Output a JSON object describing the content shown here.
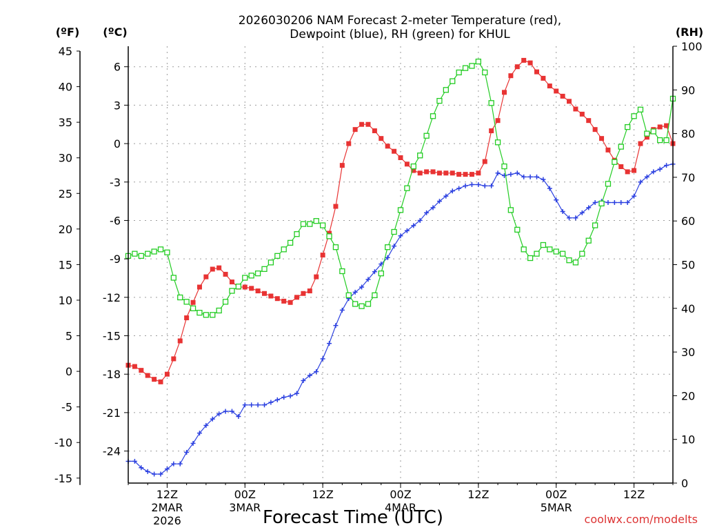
{
  "chart_data": {
    "type": "line",
    "title_line1": "2026030206 NAM Forecast 2-meter Temperature (red),",
    "title_line2": "Dewpoint (blue), RH (green) for KHUL",
    "xlabel": "Forecast Time (UTC)",
    "credit": "coolwx.com/modelts",
    "units": {
      "fahrenheit": "(ºF)",
      "celsius": "(ºC)",
      "rh": "(RH)"
    },
    "x_range_hours": [
      0,
      84
    ],
    "celsius_range": [
      -26.5,
      7.6
    ],
    "rh_range": [
      0,
      100
    ],
    "y_left_f_ticks": [
      "-15",
      "-10",
      "-5",
      "0",
      "5",
      "10",
      "15",
      "20",
      "25",
      "30",
      "35",
      "40",
      "45"
    ],
    "y_left_c_ticks": [
      "-24",
      "-21",
      "-18",
      "-15",
      "-12",
      "-9",
      "-6",
      "-3",
      "0",
      "3",
      "6"
    ],
    "y_right_ticks": [
      "0",
      "10",
      "20",
      "30",
      "40",
      "50",
      "60",
      "70",
      "80",
      "90",
      "100"
    ],
    "x_ticks": [
      {
        "hour": 6,
        "label": "12Z",
        "date": "2MAR",
        "year": "2026"
      },
      {
        "hour": 18,
        "label": "00Z",
        "date": "3MAR",
        "year": ""
      },
      {
        "hour": 30,
        "label": "12Z",
        "date": "",
        "year": ""
      },
      {
        "hour": 42,
        "label": "00Z",
        "date": "4MAR",
        "year": ""
      },
      {
        "hour": 54,
        "label": "12Z",
        "date": "",
        "year": ""
      },
      {
        "hour": 66,
        "label": "00Z",
        "date": "5MAR",
        "year": ""
      },
      {
        "hour": 78,
        "label": "12Z",
        "date": "",
        "year": ""
      }
    ],
    "series": [
      {
        "name": "Temperature",
        "color": "#e83333",
        "unit": "C",
        "values": [
          [
            0,
            -17.3
          ],
          [
            1,
            -17.4
          ],
          [
            2,
            -17.7
          ],
          [
            3,
            -18.1
          ],
          [
            4,
            -18.4
          ],
          [
            5,
            -18.6
          ],
          [
            6,
            -18.0
          ],
          [
            7,
            -16.8
          ],
          [
            8,
            -15.4
          ],
          [
            9,
            -13.6
          ],
          [
            10,
            -12.4
          ],
          [
            11,
            -11.2
          ],
          [
            12,
            -10.4
          ],
          [
            13,
            -9.8
          ],
          [
            14,
            -9.7
          ],
          [
            15,
            -10.2
          ],
          [
            16,
            -10.8
          ],
          [
            17,
            -11.2
          ],
          [
            18,
            -11.2
          ],
          [
            19,
            -11.3
          ],
          [
            20,
            -11.5
          ],
          [
            21,
            -11.7
          ],
          [
            22,
            -11.9
          ],
          [
            23,
            -12.1
          ],
          [
            24,
            -12.3
          ],
          [
            25,
            -12.4
          ],
          [
            26,
            -12.0
          ],
          [
            27,
            -11.7
          ],
          [
            28,
            -11.5
          ],
          [
            29,
            -10.4
          ],
          [
            30,
            -8.7
          ],
          [
            31,
            -7.0
          ],
          [
            32,
            -4.9
          ],
          [
            33,
            -1.7
          ],
          [
            34,
            0.0
          ],
          [
            35,
            1.1
          ],
          [
            36,
            1.5
          ],
          [
            37,
            1.5
          ],
          [
            38,
            1.0
          ],
          [
            39,
            0.4
          ],
          [
            40,
            -0.2
          ],
          [
            41,
            -0.6
          ],
          [
            42,
            -1.1
          ],
          [
            43,
            -1.6
          ],
          [
            44,
            -2.1
          ],
          [
            45,
            -2.3
          ],
          [
            46,
            -2.2
          ],
          [
            47,
            -2.2
          ],
          [
            48,
            -2.3
          ],
          [
            49,
            -2.3
          ],
          [
            50,
            -2.3
          ],
          [
            51,
            -2.4
          ],
          [
            52,
            -2.4
          ],
          [
            53,
            -2.4
          ],
          [
            54,
            -2.3
          ],
          [
            55,
            -1.4
          ],
          [
            56,
            1.0
          ],
          [
            57,
            1.8
          ],
          [
            58,
            4.0
          ],
          [
            59,
            5.3
          ],
          [
            60,
            6.0
          ],
          [
            61,
            6.5
          ],
          [
            62,
            6.3
          ],
          [
            63,
            5.6
          ],
          [
            64,
            5.1
          ],
          [
            65,
            4.5
          ],
          [
            66,
            4.1
          ],
          [
            67,
            3.7
          ],
          [
            68,
            3.3
          ],
          [
            69,
            2.7
          ],
          [
            70,
            2.3
          ],
          [
            71,
            1.8
          ],
          [
            72,
            1.1
          ],
          [
            73,
            0.4
          ],
          [
            74,
            -0.5
          ],
          [
            75,
            -1.3
          ],
          [
            76,
            -1.8
          ],
          [
            77,
            -2.2
          ],
          [
            78,
            -2.1
          ],
          [
            79,
            0.0
          ],
          [
            80,
            0.5
          ],
          [
            81,
            1.1
          ],
          [
            82,
            1.3
          ],
          [
            83,
            1.4
          ],
          [
            84,
            0.0
          ]
        ]
      },
      {
        "name": "Dewpoint",
        "color": "#2a3fe0",
        "unit": "C",
        "values": [
          [
            0,
            -24.8
          ],
          [
            1,
            -24.8
          ],
          [
            2,
            -25.3
          ],
          [
            3,
            -25.6
          ],
          [
            4,
            -25.8
          ],
          [
            5,
            -25.8
          ],
          [
            6,
            -25.4
          ],
          [
            7,
            -25.0
          ],
          [
            8,
            -25.0
          ],
          [
            9,
            -24.1
          ],
          [
            10,
            -23.4
          ],
          [
            11,
            -22.6
          ],
          [
            12,
            -22.0
          ],
          [
            13,
            -21.5
          ],
          [
            14,
            -21.1
          ],
          [
            15,
            -20.9
          ],
          [
            16,
            -20.9
          ],
          [
            17,
            -21.3
          ],
          [
            18,
            -20.4
          ],
          [
            19,
            -20.4
          ],
          [
            20,
            -20.4
          ],
          [
            21,
            -20.4
          ],
          [
            22,
            -20.2
          ],
          [
            23,
            -20.0
          ],
          [
            24,
            -19.8
          ],
          [
            25,
            -19.7
          ],
          [
            26,
            -19.5
          ],
          [
            27,
            -18.5
          ],
          [
            28,
            -18.1
          ],
          [
            29,
            -17.8
          ],
          [
            30,
            -16.8
          ],
          [
            31,
            -15.6
          ],
          [
            32,
            -14.2
          ],
          [
            33,
            -13.0
          ],
          [
            34,
            -12.1
          ],
          [
            35,
            -11.6
          ],
          [
            36,
            -11.2
          ],
          [
            37,
            -10.6
          ],
          [
            38,
            -10.0
          ],
          [
            39,
            -9.4
          ],
          [
            40,
            -8.9
          ],
          [
            41,
            -8.0
          ],
          [
            42,
            -7.2
          ],
          [
            43,
            -6.8
          ],
          [
            44,
            -6.4
          ],
          [
            45,
            -6.0
          ],
          [
            46,
            -5.4
          ],
          [
            47,
            -5.0
          ],
          [
            48,
            -4.5
          ],
          [
            49,
            -4.1
          ],
          [
            50,
            -3.7
          ],
          [
            51,
            -3.5
          ],
          [
            52,
            -3.3
          ],
          [
            53,
            -3.2
          ],
          [
            54,
            -3.2
          ],
          [
            55,
            -3.3
          ],
          [
            56,
            -3.3
          ],
          [
            57,
            -2.3
          ],
          [
            58,
            -2.5
          ],
          [
            59,
            -2.4
          ],
          [
            60,
            -2.3
          ],
          [
            61,
            -2.6
          ],
          [
            62,
            -2.6
          ],
          [
            63,
            -2.6
          ],
          [
            64,
            -2.8
          ],
          [
            65,
            -3.5
          ],
          [
            66,
            -4.4
          ],
          [
            67,
            -5.3
          ],
          [
            68,
            -5.8
          ],
          [
            69,
            -5.8
          ],
          [
            70,
            -5.4
          ],
          [
            71,
            -5.0
          ],
          [
            72,
            -4.6
          ],
          [
            73,
            -4.5
          ],
          [
            74,
            -4.6
          ],
          [
            75,
            -4.6
          ],
          [
            76,
            -4.6
          ],
          [
            77,
            -4.6
          ],
          [
            78,
            -4.1
          ],
          [
            79,
            -3.0
          ],
          [
            80,
            -2.6
          ],
          [
            81,
            -2.2
          ],
          [
            82,
            -2.0
          ],
          [
            83,
            -1.7
          ],
          [
            84,
            -1.6
          ]
        ]
      },
      {
        "name": "RH",
        "color": "#22cc22",
        "unit": "%",
        "values": [
          [
            0,
            52
          ],
          [
            1,
            52.5
          ],
          [
            2,
            52
          ],
          [
            3,
            52.5
          ],
          [
            4,
            53
          ],
          [
            5,
            53.5
          ],
          [
            6,
            52.8
          ],
          [
            7,
            47
          ],
          [
            8,
            42.5
          ],
          [
            9,
            41.5
          ],
          [
            10,
            40
          ],
          [
            11,
            39
          ],
          [
            12,
            38.5
          ],
          [
            13,
            38.5
          ],
          [
            14,
            39.5
          ],
          [
            15,
            41.5
          ],
          [
            16,
            44
          ],
          [
            17,
            45
          ],
          [
            18,
            47
          ],
          [
            19,
            47.5
          ],
          [
            20,
            48
          ],
          [
            21,
            49
          ],
          [
            22,
            50.5
          ],
          [
            23,
            52
          ],
          [
            24,
            53.5
          ],
          [
            25,
            55
          ],
          [
            26,
            57
          ],
          [
            27,
            59.3
          ],
          [
            28,
            59.3
          ],
          [
            29,
            60
          ],
          [
            30,
            59
          ],
          [
            31,
            56.5
          ],
          [
            32,
            54
          ],
          [
            33,
            48.5
          ],
          [
            34,
            43
          ],
          [
            35,
            41
          ],
          [
            36,
            40.5
          ],
          [
            37,
            41
          ],
          [
            38,
            43
          ],
          [
            39,
            48
          ],
          [
            40,
            54
          ],
          [
            41,
            57.5
          ],
          [
            42,
            62.5
          ],
          [
            43,
            67.5
          ],
          [
            44,
            72.5
          ],
          [
            45,
            75
          ],
          [
            46,
            79.5
          ],
          [
            47,
            84
          ],
          [
            48,
            87.5
          ],
          [
            49,
            90
          ],
          [
            50,
            92
          ],
          [
            51,
            94
          ],
          [
            52,
            95
          ],
          [
            53,
            95.5
          ],
          [
            54,
            96.5
          ],
          [
            55,
            94
          ],
          [
            56,
            87
          ],
          [
            57,
            78
          ],
          [
            58,
            72.5
          ],
          [
            59,
            62.5
          ],
          [
            60,
            58
          ],
          [
            61,
            53.5
          ],
          [
            62,
            51.5
          ],
          [
            63,
            52.5
          ],
          [
            64,
            54.5
          ],
          [
            65,
            53.5
          ],
          [
            66,
            53
          ],
          [
            67,
            52.5
          ],
          [
            68,
            51
          ],
          [
            69,
            50.5
          ],
          [
            70,
            52.5
          ],
          [
            71,
            55.5
          ],
          [
            72,
            59
          ],
          [
            73,
            64
          ],
          [
            74,
            68.5
          ],
          [
            75,
            73.5
          ],
          [
            76,
            77
          ],
          [
            77,
            81.5
          ],
          [
            78,
            84
          ],
          [
            79,
            85.5
          ],
          [
            80,
            80
          ],
          [
            81,
            80.5
          ],
          [
            82,
            78.5
          ],
          [
            83,
            78.5
          ],
          [
            84,
            88
          ]
        ]
      }
    ]
  }
}
